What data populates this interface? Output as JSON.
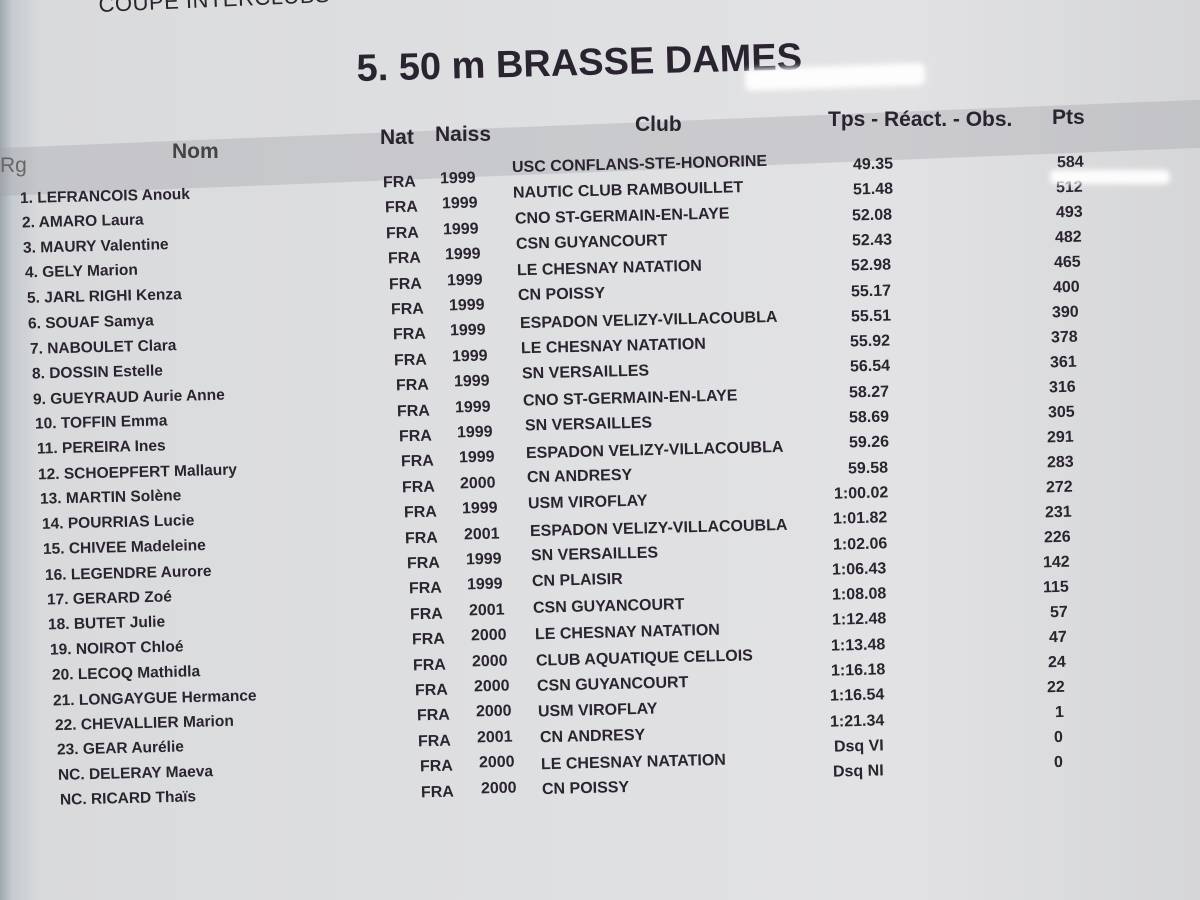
{
  "supertitle": "COUPE INTERCLUBS",
  "title": "5.   50 m BRASSE DAMES",
  "headers": {
    "rank": "Rg",
    "name": "Nom",
    "nat": "Nat",
    "birth": "Naiss",
    "club": "Club",
    "time": "Tps - Réact. - Obs.",
    "points": "Pts"
  },
  "rows": [
    {
      "name": "1. LEFRANCOIS Anouk",
      "nat": "FRA",
      "year": "1999",
      "club": "USC CONFLANS-STE-HONORINE",
      "time": "49.35",
      "pts": "584"
    },
    {
      "name": "2. AMARO Laura",
      "nat": "FRA",
      "year": "1999",
      "club": "NAUTIC CLUB RAMBOUILLET",
      "time": "51.48",
      "pts": "512"
    },
    {
      "name": "3. MAURY Valentine",
      "nat": "FRA",
      "year": "1999",
      "club": "CNO ST-GERMAIN-EN-LAYE",
      "time": "52.08",
      "pts": "493"
    },
    {
      "name": "4. GELY Marion",
      "nat": "FRA",
      "year": "1999",
      "club": "CSN GUYANCOURT",
      "time": "52.43",
      "pts": "482"
    },
    {
      "name": "5. JARL RIGHI Kenza",
      "nat": "FRA",
      "year": "1999",
      "club": "LE CHESNAY NATATION",
      "time": "52.98",
      "pts": "465"
    },
    {
      "name": "6. SOUAF Samya",
      "nat": "FRA",
      "year": "1999",
      "club": "CN POISSY",
      "time": "55.17",
      "pts": "400"
    },
    {
      "name": "7. NABOULET Clara",
      "nat": "FRA",
      "year": "1999",
      "club": "ESPADON VELIZY-VILLACOUBLA",
      "time": "55.51",
      "pts": "390"
    },
    {
      "name": "8. DOSSIN Estelle",
      "nat": "FRA",
      "year": "1999",
      "club": "LE CHESNAY NATATION",
      "time": "55.92",
      "pts": "378"
    },
    {
      "name": "9. GUEYRAUD Aurie Anne",
      "nat": "FRA",
      "year": "1999",
      "club": "SN VERSAILLES",
      "time": "56.54",
      "pts": "361"
    },
    {
      "name": "10. TOFFIN Emma",
      "nat": "FRA",
      "year": "1999",
      "club": "CNO ST-GERMAIN-EN-LAYE",
      "time": "58.27",
      "pts": "316"
    },
    {
      "name": "11. PEREIRA Ines",
      "nat": "FRA",
      "year": "1999",
      "club": "SN VERSAILLES",
      "time": "58.69",
      "pts": "305"
    },
    {
      "name": "12. SCHOEPFERT Mallaury",
      "nat": "FRA",
      "year": "1999",
      "club": "ESPADON VELIZY-VILLACOUBLA",
      "time": "59.26",
      "pts": "291"
    },
    {
      "name": "13. MARTIN Solène",
      "nat": "FRA",
      "year": "2000",
      "club": "CN ANDRESY",
      "time": "59.58",
      "pts": "283"
    },
    {
      "name": "14. POURRIAS Lucie",
      "nat": "FRA",
      "year": "1999",
      "club": "USM VIROFLAY",
      "time": "1:00.02",
      "pts": "272"
    },
    {
      "name": "15. CHIVEE Madeleine",
      "nat": "FRA",
      "year": "2001",
      "club": "ESPADON VELIZY-VILLACOUBLA",
      "time": "1:01.82",
      "pts": "231"
    },
    {
      "name": "16. LEGENDRE Aurore",
      "nat": "FRA",
      "year": "1999",
      "club": "SN VERSAILLES",
      "time": "1:02.06",
      "pts": "226"
    },
    {
      "name": "17. GERARD Zoé",
      "nat": "FRA",
      "year": "1999",
      "club": "CN PLAISIR",
      "time": "1:06.43",
      "pts": "142"
    },
    {
      "name": "18. BUTET Julie",
      "nat": "FRA",
      "year": "2001",
      "club": "CSN GUYANCOURT",
      "time": "1:08.08",
      "pts": "115"
    },
    {
      "name": "19. NOIROT Chloé",
      "nat": "FRA",
      "year": "2000",
      "club": "LE CHESNAY NATATION",
      "time": "1:12.48",
      "pts": "57"
    },
    {
      "name": "20. LECOQ Mathidla",
      "nat": "FRA",
      "year": "2000",
      "club": "CLUB AQUATIQUE CELLOIS",
      "time": "1:13.48",
      "pts": "47"
    },
    {
      "name": "21. LONGAYGUE Hermance",
      "nat": "FRA",
      "year": "2000",
      "club": "CSN GUYANCOURT",
      "time": "1:16.18",
      "pts": "24"
    },
    {
      "name": "22. CHEVALLIER Marion",
      "nat": "FRA",
      "year": "2000",
      "club": "USM VIROFLAY",
      "time": "1:16.54",
      "pts": "22"
    },
    {
      "name": "23. GEAR Aurélie",
      "nat": "FRA",
      "year": "2001",
      "club": "CN ANDRESY",
      "time": "1:21.34",
      "pts": "1"
    },
    {
      "name": "NC. DELERAY Maeva",
      "nat": "FRA",
      "year": "2000",
      "club": "LE CHESNAY NATATION",
      "time": "Dsq VI",
      "pts": "0"
    },
    {
      "name": "NC. RICARD Thaïs",
      "nat": "FRA",
      "year": "2000",
      "club": "CN POISSY",
      "time": "Dsq NI",
      "pts": "0"
    }
  ]
}
